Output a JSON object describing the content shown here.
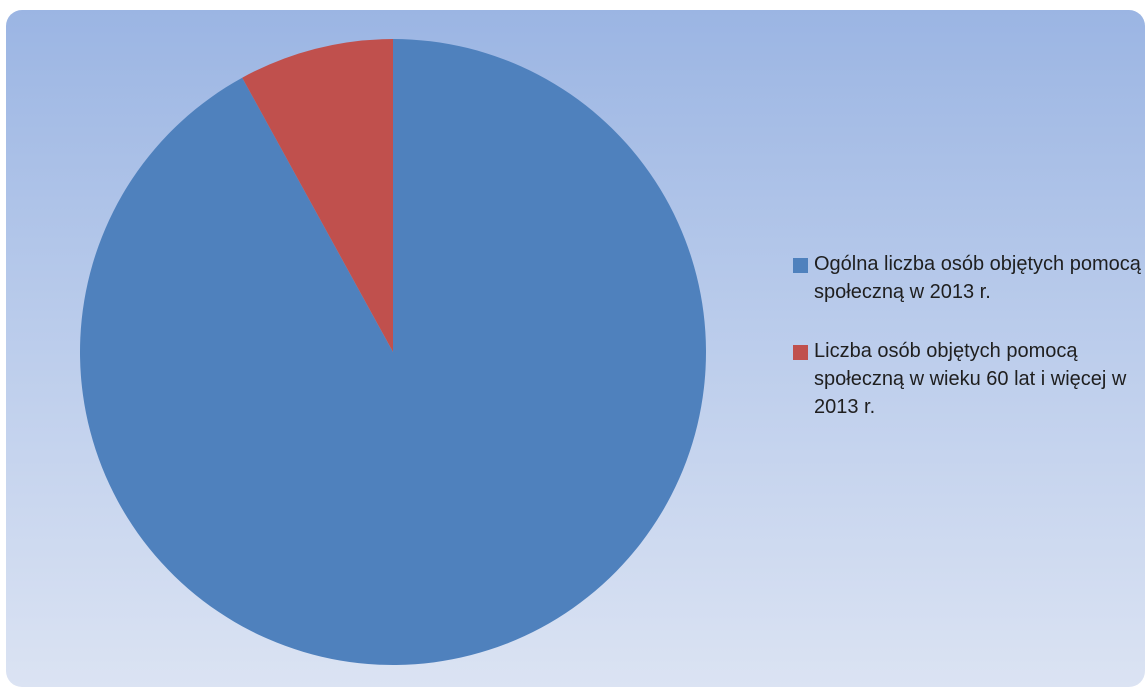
{
  "chart_data": {
    "type": "pie",
    "title": "",
    "legend_position": "right",
    "series": [
      {
        "name": "Ogólna liczba osób objętych pomocą społeczną w 2013 r.",
        "value": 92,
        "color": "#4f81bd"
      },
      {
        "name": "Liczba osób objętych pomocą społeczną w wieku 60 lat i więcej w 2013 r.",
        "value": 8,
        "color": "#c0504d"
      }
    ]
  }
}
